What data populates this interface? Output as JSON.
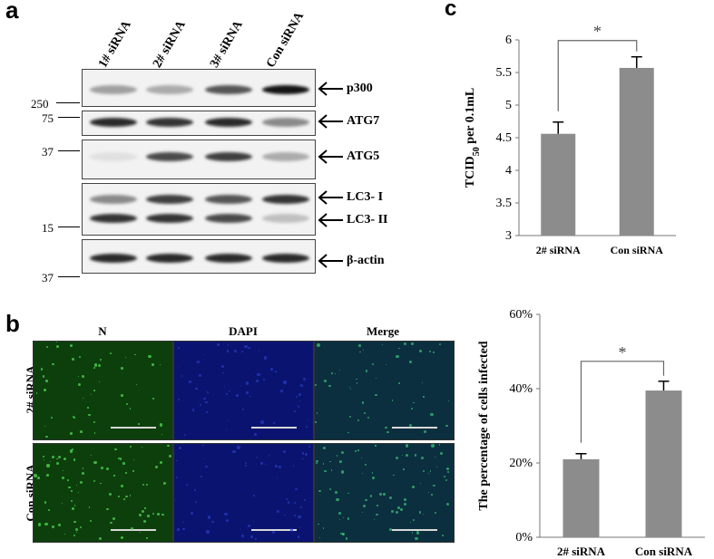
{
  "panel_a": {
    "letter": "a",
    "lanes": [
      "1# siRNA",
      "2# siRNA",
      "3# siRNA",
      "Con siRNA"
    ],
    "markers": {
      "m250": "250",
      "m75": "75",
      "m37a": "37",
      "m15": "15",
      "m37b": "37"
    },
    "proteins": {
      "p300": "p300",
      "atg7": "ATG7",
      "atg5": "ATG5",
      "lc3i": "LC3- I",
      "lc3ii": "LC3- II",
      "actin": "β-actin"
    },
    "band_intensity": {
      "p300": [
        0.35,
        0.3,
        0.7,
        1.0
      ],
      "atg7": [
        0.9,
        0.85,
        0.9,
        0.45
      ],
      "atg5": [
        0.05,
        0.75,
        0.8,
        0.3
      ],
      "lc3i": [
        0.45,
        0.8,
        0.7,
        0.85
      ],
      "lc3ii": [
        0.85,
        0.85,
        0.75,
        0.2
      ],
      "actin": [
        0.9,
        0.9,
        0.9,
        0.9
      ]
    }
  },
  "panel_b": {
    "letter": "b",
    "columns": [
      "N",
      "DAPI",
      "Merge"
    ],
    "rows": [
      "2# siRNA",
      "Con siRNA"
    ]
  },
  "chart_data": [
    {
      "type": "bar",
      "panel": "c",
      "categories": [
        "2# siRNA",
        "Con siRNA"
      ],
      "values": [
        4.56,
        5.57
      ],
      "error": [
        0.18,
        0.17
      ],
      "ylabel_main": "TCID",
      "ylabel_sub": "50",
      "ylabel_rest": " per 0.1mL",
      "ylim": [
        3,
        6
      ],
      "yticks": [
        "3",
        "3.5",
        "4",
        "4.5",
        "5",
        "5.5",
        "6"
      ],
      "significance": "*",
      "bar_color": "#8c8c8c"
    },
    {
      "type": "bar",
      "categories": [
        "2# siRNA",
        "Con siRNA"
      ],
      "values": [
        21,
        39.5
      ],
      "error": [
        1.5,
        2.5
      ],
      "ylabel": "The percentage of cells infected",
      "ylim": [
        0,
        60
      ],
      "yticks": [
        "0%",
        "20%",
        "40%",
        "60%"
      ],
      "significance": "*",
      "bar_color": "#8c8c8c"
    }
  ]
}
